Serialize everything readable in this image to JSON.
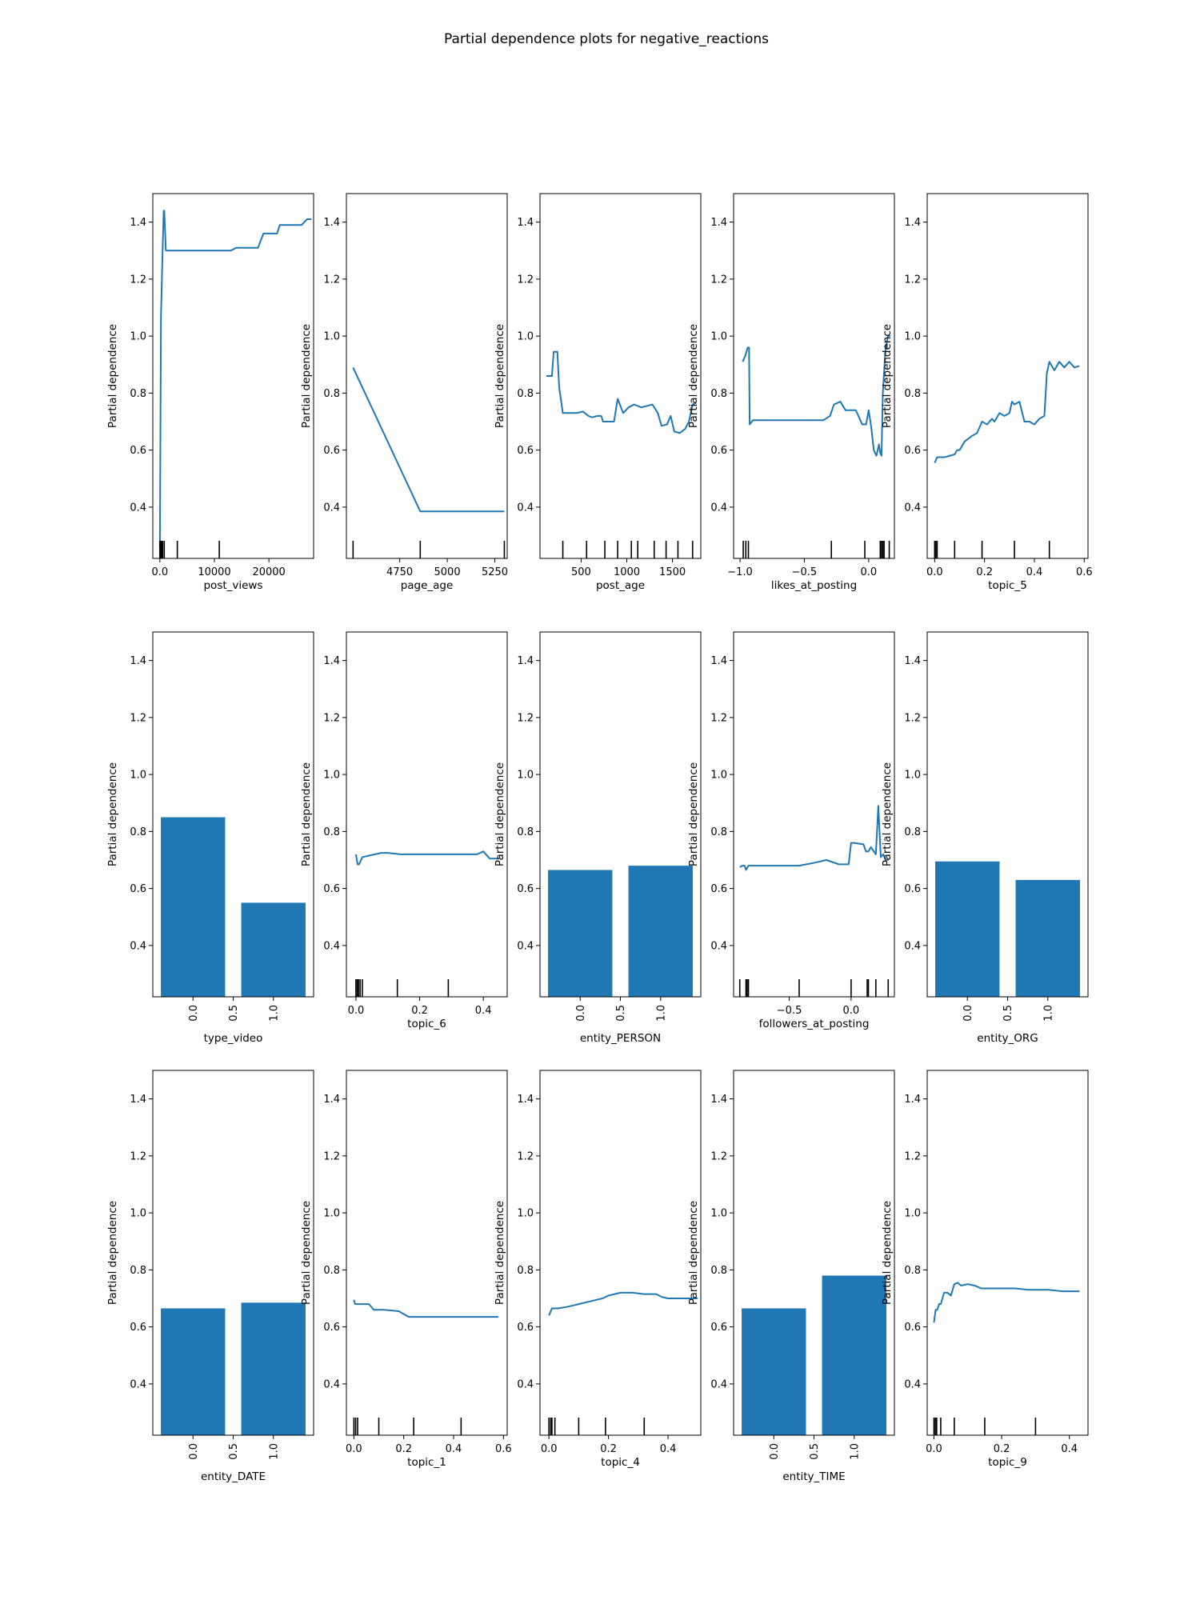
{
  "figure": {
    "title": "Partial dependence plots for negative_reactions"
  },
  "chart_data": [
    {
      "type": "line",
      "xlabel": "post_views",
      "ylabel": "Partial dependence",
      "ylim": [
        0.22,
        1.5
      ],
      "yticks": [
        0.4,
        0.6,
        0.8,
        1.0,
        1.2,
        1.4
      ],
      "xlim": [
        -1300,
        28200
      ],
      "xticks": [
        0,
        10000,
        20000
      ],
      "series": [
        {
          "x": [
            0,
            200,
            500,
            700,
            800,
            1100,
            1500,
            3000,
            8000,
            11000,
            13000,
            14000,
            15500,
            16000,
            18000,
            19000,
            20000,
            21500,
            22000,
            26000,
            27000,
            27800
          ],
          "y": [
            0.26,
            1.07,
            1.3,
            1.44,
            1.44,
            1.3,
            1.3,
            1.3,
            1.3,
            1.3,
            1.3,
            1.31,
            1.31,
            1.31,
            1.31,
            1.36,
            1.36,
            1.36,
            1.39,
            1.39,
            1.41,
            1.41
          ]
        }
      ],
      "rug": [
        0,
        150,
        300,
        500,
        800,
        3200,
        10900
      ]
    },
    {
      "type": "line",
      "xlabel": "page_age",
      "ylabel": "Partial dependence",
      "ylim": [
        0.22,
        1.5
      ],
      "yticks": [
        0.4,
        0.6,
        0.8,
        1.0,
        1.2,
        1.4
      ],
      "xlim": [
        4470,
        5315
      ],
      "xticks": [
        4750,
        5000,
        5250
      ],
      "series": [
        {
          "x": [
            4505,
            4858,
            5300
          ],
          "y": [
            0.89,
            0.385,
            0.385
          ]
        }
      ],
      "rug": [
        4505,
        4858,
        5300
      ]
    },
    {
      "type": "line",
      "xlabel": "post_age",
      "ylabel": "Partial dependence",
      "ylim": [
        0.22,
        1.5
      ],
      "yticks": [
        0.4,
        0.6,
        0.8,
        1.0,
        1.2,
        1.4
      ],
      "xlim": [
        50,
        1810
      ],
      "xticks": [
        500,
        1000,
        1500
      ],
      "series": [
        {
          "x": [
            120,
            180,
            200,
            240,
            260,
            300,
            360,
            450,
            520,
            580,
            620,
            680,
            720,
            740,
            780,
            860,
            900,
            960,
            1020,
            1080,
            1160,
            1220,
            1280,
            1340,
            1380,
            1440,
            1480,
            1520,
            1580,
            1640,
            1680,
            1720,
            1760
          ],
          "y": [
            0.86,
            0.86,
            0.945,
            0.945,
            0.82,
            0.73,
            0.73,
            0.73,
            0.735,
            0.72,
            0.715,
            0.72,
            0.72,
            0.7,
            0.7,
            0.7,
            0.78,
            0.73,
            0.75,
            0.76,
            0.75,
            0.755,
            0.76,
            0.73,
            0.685,
            0.69,
            0.72,
            0.665,
            0.66,
            0.675,
            0.7,
            0.76,
            0.765
          ]
        }
      ],
      "rug": [
        300,
        560,
        760,
        900,
        1050,
        1120,
        1300,
        1430,
        1560,
        1720
      ]
    },
    {
      "type": "line",
      "xlabel": "likes_at_posting",
      "ylabel": "Partial dependence",
      "ylim": [
        0.22,
        1.5
      ],
      "yticks": [
        0.4,
        0.6,
        0.8,
        1.0,
        1.2,
        1.4
      ],
      "xlim": [
        -1.05,
        0.2
      ],
      "xticks": [
        -1.0,
        -0.5,
        0.0
      ],
      "series": [
        {
          "x": [
            -0.98,
            -0.96,
            -0.94,
            -0.93,
            -0.925,
            -0.9,
            -0.6,
            -0.35,
            -0.3,
            -0.27,
            -0.22,
            -0.18,
            -0.1,
            -0.05,
            -0.04,
            -0.02,
            0.0,
            0.02,
            0.04,
            0.06,
            0.08,
            0.09,
            0.1,
            0.11,
            0.13,
            0.15,
            0.17
          ],
          "y": [
            0.91,
            0.93,
            0.96,
            0.96,
            0.69,
            0.705,
            0.705,
            0.705,
            0.72,
            0.76,
            0.77,
            0.74,
            0.74,
            0.69,
            0.69,
            0.69,
            0.74,
            0.68,
            0.6,
            0.58,
            0.62,
            0.59,
            0.58,
            0.8,
            0.95,
            1.0,
            1.0
          ]
        }
      ],
      "rug": [
        -0.975,
        -0.955,
        -0.935,
        -0.29,
        -0.03,
        0.09,
        0.1,
        0.11,
        0.12,
        0.16
      ]
    },
    {
      "type": "line",
      "xlabel": "topic_5",
      "ylabel": "Partial dependence",
      "ylim": [
        0.22,
        1.5
      ],
      "yticks": [
        0.4,
        0.6,
        0.8,
        1.0,
        1.2,
        1.4
      ],
      "xlim": [
        -0.03,
        0.615
      ],
      "xticks": [
        0.0,
        0.2,
        0.4,
        0.6
      ],
      "series": [
        {
          "x": [
            0.0,
            0.01,
            0.02,
            0.04,
            0.06,
            0.08,
            0.09,
            0.1,
            0.12,
            0.15,
            0.17,
            0.19,
            0.21,
            0.23,
            0.24,
            0.26,
            0.28,
            0.3,
            0.31,
            0.32,
            0.34,
            0.36,
            0.38,
            0.4,
            0.42,
            0.44,
            0.45,
            0.46,
            0.48,
            0.5,
            0.52,
            0.54,
            0.56,
            0.58
          ],
          "y": [
            0.555,
            0.575,
            0.575,
            0.575,
            0.58,
            0.585,
            0.6,
            0.6,
            0.63,
            0.65,
            0.66,
            0.7,
            0.69,
            0.71,
            0.7,
            0.73,
            0.72,
            0.73,
            0.77,
            0.76,
            0.77,
            0.7,
            0.7,
            0.69,
            0.71,
            0.72,
            0.87,
            0.91,
            0.88,
            0.91,
            0.89,
            0.91,
            0.89,
            0.895
          ]
        }
      ],
      "rug": [
        0.0,
        0.005,
        0.01,
        0.08,
        0.19,
        0.32,
        0.46
      ]
    },
    {
      "type": "bar",
      "xlabel": "type_video",
      "ylabel": "Partial dependence",
      "ylim": [
        0.22,
        1.5
      ],
      "yticks": [
        0.4,
        0.6,
        0.8,
        1.0,
        1.2,
        1.4
      ],
      "xlim": [
        -0.5,
        1.5
      ],
      "xticks": [
        0.0,
        0.5,
        1.0
      ],
      "categories": [
        "0.0",
        "1.0"
      ],
      "values": [
        0.85,
        0.55
      ]
    },
    {
      "type": "line",
      "xlabel": "topic_6",
      "ylabel": "Partial dependence",
      "ylim": [
        0.22,
        1.5
      ],
      "yticks": [
        0.4,
        0.6,
        0.8,
        1.0,
        1.2,
        1.4
      ],
      "xlim": [
        -0.03,
        0.475
      ],
      "xticks": [
        0.0,
        0.2,
        0.4
      ],
      "series": [
        {
          "x": [
            0.0,
            0.005,
            0.01,
            0.02,
            0.04,
            0.06,
            0.08,
            0.1,
            0.14,
            0.2,
            0.26,
            0.3,
            0.34,
            0.38,
            0.4,
            0.42,
            0.45
          ],
          "y": [
            0.72,
            0.685,
            0.685,
            0.71,
            0.715,
            0.72,
            0.725,
            0.725,
            0.72,
            0.72,
            0.72,
            0.72,
            0.72,
            0.72,
            0.73,
            0.705,
            0.705
          ]
        }
      ],
      "rug": [
        0.0,
        0.004,
        0.008,
        0.013,
        0.02,
        0.13,
        0.29
      ]
    },
    {
      "type": "bar",
      "xlabel": "entity_PERSON",
      "ylabel": "Partial dependence",
      "ylim": [
        0.22,
        1.5
      ],
      "yticks": [
        0.4,
        0.6,
        0.8,
        1.0,
        1.2,
        1.4
      ],
      "xlim": [
        -0.5,
        1.5
      ],
      "xticks": [
        0.0,
        0.5,
        1.0
      ],
      "categories": [
        "0.0",
        "1.0"
      ],
      "values": [
        0.665,
        0.68
      ]
    },
    {
      "type": "line",
      "xlabel": "followers_at_posting",
      "ylabel": "Partial dependence",
      "ylim": [
        0.22,
        1.5
      ],
      "yticks": [
        0.4,
        0.6,
        0.8,
        1.0,
        1.2,
        1.4
      ],
      "xlim": [
        -0.95,
        0.35
      ],
      "xticks": [
        -0.5,
        0.0
      ],
      "series": [
        {
          "x": [
            -0.9,
            -0.88,
            -0.86,
            -0.85,
            -0.83,
            -0.8,
            -0.6,
            -0.5,
            -0.42,
            -0.3,
            -0.2,
            -0.1,
            -0.02,
            0.0,
            0.02,
            0.1,
            0.12,
            0.14,
            0.16,
            0.2,
            0.22,
            0.24,
            0.26,
            0.28,
            0.3
          ],
          "y": [
            0.675,
            0.68,
            0.68,
            0.665,
            0.68,
            0.68,
            0.68,
            0.68,
            0.68,
            0.69,
            0.7,
            0.685,
            0.685,
            0.76,
            0.76,
            0.755,
            0.73,
            0.73,
            0.745,
            0.72,
            0.89,
            0.71,
            0.72,
            0.7,
            0.7
          ]
        }
      ],
      "rug": [
        -0.9,
        -0.85,
        -0.84,
        -0.83,
        -0.42,
        0.0,
        0.13,
        0.14,
        0.2,
        0.3
      ]
    },
    {
      "type": "bar",
      "xlabel": "entity_ORG",
      "ylabel": "Partial dependence",
      "ylim": [
        0.22,
        1.5
      ],
      "yticks": [
        0.4,
        0.6,
        0.8,
        1.0,
        1.2,
        1.4
      ],
      "xlim": [
        -0.5,
        1.5
      ],
      "xticks": [
        0.0,
        0.5,
        1.0
      ],
      "categories": [
        "0.0",
        "1.0"
      ],
      "values": [
        0.695,
        0.63
      ]
    },
    {
      "type": "bar",
      "xlabel": "entity_DATE",
      "ylabel": "Partial dependence",
      "ylim": [
        0.22,
        1.5
      ],
      "yticks": [
        0.4,
        0.6,
        0.8,
        1.0,
        1.2,
        1.4
      ],
      "xlim": [
        -0.5,
        1.5
      ],
      "xticks": [
        0.0,
        0.5,
        1.0
      ],
      "categories": [
        "0.0",
        "1.0"
      ],
      "values": [
        0.665,
        0.685
      ]
    },
    {
      "type": "line",
      "xlabel": "topic_1",
      "ylabel": "Partial dependence",
      "ylim": [
        0.22,
        1.5
      ],
      "yticks": [
        0.4,
        0.6,
        0.8,
        1.0,
        1.2,
        1.4
      ],
      "xlim": [
        -0.03,
        0.615
      ],
      "xticks": [
        0.0,
        0.2,
        0.4,
        0.6
      ],
      "series": [
        {
          "x": [
            0.0,
            0.005,
            0.02,
            0.06,
            0.08,
            0.1,
            0.12,
            0.18,
            0.2,
            0.22,
            0.24,
            0.28,
            0.3,
            0.4,
            0.5,
            0.58
          ],
          "y": [
            0.695,
            0.68,
            0.68,
            0.68,
            0.66,
            0.66,
            0.66,
            0.655,
            0.645,
            0.635,
            0.635,
            0.635,
            0.635,
            0.635,
            0.635,
            0.635
          ]
        }
      ],
      "rug": [
        0.0,
        0.007,
        0.015,
        0.1,
        0.24,
        0.43
      ]
    },
    {
      "type": "line",
      "xlabel": "topic_4",
      "ylabel": "Partial dependence",
      "ylim": [
        0.22,
        1.5
      ],
      "yticks": [
        0.4,
        0.6,
        0.8,
        1.0,
        1.2,
        1.4
      ],
      "xlim": [
        -0.03,
        0.51
      ],
      "xticks": [
        0.0,
        0.2,
        0.4
      ],
      "series": [
        {
          "x": [
            0.0,
            0.01,
            0.03,
            0.06,
            0.08,
            0.1,
            0.14,
            0.18,
            0.2,
            0.24,
            0.28,
            0.32,
            0.36,
            0.38,
            0.4,
            0.42,
            0.44,
            0.46,
            0.5
          ],
          "y": [
            0.64,
            0.665,
            0.665,
            0.67,
            0.675,
            0.68,
            0.69,
            0.7,
            0.71,
            0.72,
            0.72,
            0.715,
            0.715,
            0.705,
            0.7,
            0.7,
            0.7,
            0.7,
            0.7
          ]
        }
      ],
      "rug": [
        0.0,
        0.006,
        0.01,
        0.02,
        0.1,
        0.19,
        0.32
      ]
    },
    {
      "type": "bar",
      "xlabel": "entity_TIME",
      "ylabel": "Partial dependence",
      "ylim": [
        0.22,
        1.5
      ],
      "yticks": [
        0.4,
        0.6,
        0.8,
        1.0,
        1.2,
        1.4
      ],
      "xlim": [
        -0.5,
        1.5
      ],
      "xticks": [
        0.0,
        0.5,
        1.0
      ],
      "categories": [
        "0.0",
        "1.0"
      ],
      "values": [
        0.665,
        0.78
      ]
    },
    {
      "type": "line",
      "xlabel": "topic_9",
      "ylabel": "Partial dependence",
      "ylim": [
        0.22,
        1.5
      ],
      "yticks": [
        0.4,
        0.6,
        0.8,
        1.0,
        1.2,
        1.4
      ],
      "xlim": [
        -0.02,
        0.455
      ],
      "xticks": [
        0.0,
        0.2,
        0.4
      ],
      "series": [
        {
          "x": [
            0.0,
            0.005,
            0.01,
            0.015,
            0.02,
            0.03,
            0.04,
            0.05,
            0.06,
            0.07,
            0.08,
            0.1,
            0.12,
            0.14,
            0.16,
            0.2,
            0.24,
            0.28,
            0.3,
            0.34,
            0.38,
            0.43
          ],
          "y": [
            0.615,
            0.66,
            0.66,
            0.68,
            0.68,
            0.72,
            0.72,
            0.71,
            0.75,
            0.755,
            0.745,
            0.75,
            0.745,
            0.735,
            0.735,
            0.735,
            0.735,
            0.73,
            0.73,
            0.73,
            0.725,
            0.725
          ]
        }
      ],
      "rug": [
        0.0,
        0.004,
        0.008,
        0.02,
        0.06,
        0.15,
        0.3
      ]
    }
  ],
  "colors": {
    "series": "#1f77b4",
    "axis": "#000000",
    "background": "#ffffff"
  }
}
